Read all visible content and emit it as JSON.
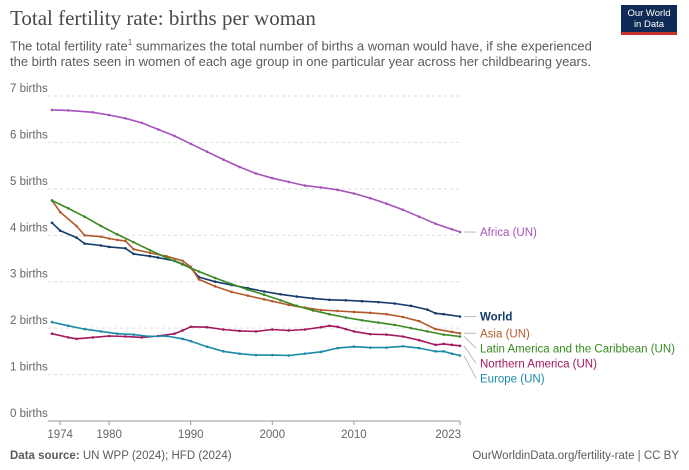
{
  "header": {
    "title": "Total fertility rate: births per woman",
    "subtitle_a": "The total fertility rate",
    "subtitle_sup": "1",
    "subtitle_b": " summarizes the total number of births a woman would have, if she experienced the birth rates seen in women of each age group in one particular year across her childbearing years.",
    "logo_line1": "Our World",
    "logo_line2": "in Data"
  },
  "footer": {
    "source_label": "Data source:",
    "source_text": " UN WPP (2024); HFD (2024)",
    "right_text": "OurWorldinData.org/fertility-rate | CC BY"
  },
  "chart_data": {
    "type": "line",
    "title": "Total fertility rate: births per woman",
    "xlim": [
      1973,
      2023
    ],
    "ylim": [
      0,
      7
    ],
    "grid": "horizontal dashed",
    "legend": "right, inline labels",
    "x_ticks": [
      1974,
      1980,
      1990,
      2000,
      2010,
      2023
    ],
    "y_ticks": [
      {
        "value": 0,
        "label": "0 births"
      },
      {
        "value": 1,
        "label": "1 births"
      },
      {
        "value": 2,
        "label": "2 births"
      },
      {
        "value": 3,
        "label": "3 births"
      },
      {
        "value": 4,
        "label": "4 births"
      },
      {
        "value": 5,
        "label": "5 births"
      },
      {
        "value": 6,
        "label": "6 births"
      },
      {
        "value": 7,
        "label": "7 births"
      }
    ],
    "series": [
      {
        "name": "Africa (UN)",
        "color": "#a652ba",
        "points": [
          [
            1973,
            6.7
          ],
          [
            1975,
            6.69
          ],
          [
            1978,
            6.65
          ],
          [
            1980,
            6.59
          ],
          [
            1982,
            6.52
          ],
          [
            1984,
            6.42
          ],
          [
            1986,
            6.28
          ],
          [
            1988,
            6.14
          ],
          [
            1990,
            5.97
          ],
          [
            1992,
            5.8
          ],
          [
            1994,
            5.63
          ],
          [
            1996,
            5.47
          ],
          [
            1998,
            5.33
          ],
          [
            2000,
            5.23
          ],
          [
            2002,
            5.15
          ],
          [
            2004,
            5.07
          ],
          [
            2006,
            5.03
          ],
          [
            2008,
            4.98
          ],
          [
            2010,
            4.9
          ],
          [
            2012,
            4.8
          ],
          [
            2014,
            4.68
          ],
          [
            2016,
            4.55
          ],
          [
            2018,
            4.4
          ],
          [
            2020,
            4.25
          ],
          [
            2022,
            4.13
          ],
          [
            2023,
            4.07
          ]
        ]
      },
      {
        "name": "World",
        "color": "#133b6c",
        "points": [
          [
            1973,
            4.27
          ],
          [
            1974,
            4.1
          ],
          [
            1976,
            3.95
          ],
          [
            1977,
            3.82
          ],
          [
            1979,
            3.78
          ],
          [
            1980,
            3.75
          ],
          [
            1982,
            3.72
          ],
          [
            1983,
            3.6
          ],
          [
            1985,
            3.55
          ],
          [
            1986,
            3.52
          ],
          [
            1988,
            3.45
          ],
          [
            1989,
            3.38
          ],
          [
            1990,
            3.3
          ],
          [
            1991,
            3.1
          ],
          [
            1993,
            3.0
          ],
          [
            1995,
            2.93
          ],
          [
            1997,
            2.86
          ],
          [
            1999,
            2.79
          ],
          [
            2001,
            2.73
          ],
          [
            2003,
            2.68
          ],
          [
            2005,
            2.64
          ],
          [
            2007,
            2.61
          ],
          [
            2009,
            2.6
          ],
          [
            2011,
            2.58
          ],
          [
            2013,
            2.56
          ],
          [
            2015,
            2.53
          ],
          [
            2017,
            2.48
          ],
          [
            2019,
            2.4
          ],
          [
            2020,
            2.32
          ],
          [
            2021,
            2.3
          ],
          [
            2023,
            2.25
          ]
        ]
      },
      {
        "name": "Asia (UN)",
        "color": "#b35a2a",
        "points": [
          [
            1973,
            4.75
          ],
          [
            1974,
            4.5
          ],
          [
            1976,
            4.2
          ],
          [
            1977,
            4.0
          ],
          [
            1979,
            3.97
          ],
          [
            1980,
            3.93
          ],
          [
            1981,
            3.9
          ],
          [
            1982,
            3.88
          ],
          [
            1983,
            3.7
          ],
          [
            1985,
            3.62
          ],
          [
            1987,
            3.55
          ],
          [
            1989,
            3.45
          ],
          [
            1990,
            3.32
          ],
          [
            1991,
            3.05
          ],
          [
            1993,
            2.9
          ],
          [
            1995,
            2.78
          ],
          [
            1997,
            2.7
          ],
          [
            1999,
            2.62
          ],
          [
            2000,
            2.58
          ],
          [
            2002,
            2.5
          ],
          [
            2004,
            2.44
          ],
          [
            2006,
            2.39
          ],
          [
            2008,
            2.37
          ],
          [
            2010,
            2.35
          ],
          [
            2012,
            2.33
          ],
          [
            2014,
            2.3
          ],
          [
            2016,
            2.24
          ],
          [
            2018,
            2.15
          ],
          [
            2020,
            1.98
          ],
          [
            2022,
            1.92
          ],
          [
            2023,
            1.89
          ]
        ]
      },
      {
        "name": "Latin America and the Caribbean (UN)",
        "color": "#3a8a22",
        "points": [
          [
            1973,
            4.75
          ],
          [
            1975,
            4.58
          ],
          [
            1977,
            4.4
          ],
          [
            1979,
            4.2
          ],
          [
            1981,
            4.02
          ],
          [
            1983,
            3.85
          ],
          [
            1985,
            3.68
          ],
          [
            1987,
            3.52
          ],
          [
            1989,
            3.37
          ],
          [
            1991,
            3.22
          ],
          [
            1993,
            3.08
          ],
          [
            1995,
            2.95
          ],
          [
            1997,
            2.83
          ],
          [
            1999,
            2.72
          ],
          [
            2001,
            2.6
          ],
          [
            2003,
            2.48
          ],
          [
            2005,
            2.38
          ],
          [
            2007,
            2.3
          ],
          [
            2009,
            2.23
          ],
          [
            2011,
            2.17
          ],
          [
            2013,
            2.12
          ],
          [
            2015,
            2.07
          ],
          [
            2017,
            2.0
          ],
          [
            2019,
            1.93
          ],
          [
            2021,
            1.86
          ],
          [
            2023,
            1.82
          ]
        ]
      },
      {
        "name": "Northern America (UN)",
        "color": "#a3185f",
        "points": [
          [
            1973,
            1.88
          ],
          [
            1975,
            1.8
          ],
          [
            1976,
            1.77
          ],
          [
            1978,
            1.8
          ],
          [
            1980,
            1.83
          ],
          [
            1982,
            1.82
          ],
          [
            1984,
            1.8
          ],
          [
            1986,
            1.83
          ],
          [
            1988,
            1.88
          ],
          [
            1989,
            1.95
          ],
          [
            1990,
            2.03
          ],
          [
            1992,
            2.02
          ],
          [
            1994,
            1.97
          ],
          [
            1996,
            1.94
          ],
          [
            1998,
            1.93
          ],
          [
            2000,
            1.97
          ],
          [
            2002,
            1.95
          ],
          [
            2004,
            1.97
          ],
          [
            2006,
            2.02
          ],
          [
            2007,
            2.05
          ],
          [
            2008,
            2.03
          ],
          [
            2009,
            1.98
          ],
          [
            2010,
            1.93
          ],
          [
            2012,
            1.87
          ],
          [
            2014,
            1.86
          ],
          [
            2016,
            1.82
          ],
          [
            2018,
            1.74
          ],
          [
            2020,
            1.64
          ],
          [
            2021,
            1.66
          ],
          [
            2022,
            1.64
          ],
          [
            2023,
            1.62
          ]
        ]
      },
      {
        "name": "Europe (UN)",
        "color": "#1a8aa8",
        "points": [
          [
            1973,
            2.13
          ],
          [
            1975,
            2.05
          ],
          [
            1977,
            1.98
          ],
          [
            1979,
            1.93
          ],
          [
            1981,
            1.88
          ],
          [
            1983,
            1.86
          ],
          [
            1985,
            1.82
          ],
          [
            1987,
            1.83
          ],
          [
            1989,
            1.77
          ],
          [
            1990,
            1.72
          ],
          [
            1992,
            1.6
          ],
          [
            1994,
            1.5
          ],
          [
            1996,
            1.45
          ],
          [
            1998,
            1.42
          ],
          [
            2000,
            1.42
          ],
          [
            2002,
            1.41
          ],
          [
            2004,
            1.45
          ],
          [
            2006,
            1.49
          ],
          [
            2008,
            1.57
          ],
          [
            2010,
            1.6
          ],
          [
            2012,
            1.58
          ],
          [
            2014,
            1.58
          ],
          [
            2016,
            1.61
          ],
          [
            2018,
            1.57
          ],
          [
            2020,
            1.5
          ],
          [
            2021,
            1.5
          ],
          [
            2022,
            1.45
          ],
          [
            2023,
            1.41
          ]
        ]
      }
    ]
  }
}
